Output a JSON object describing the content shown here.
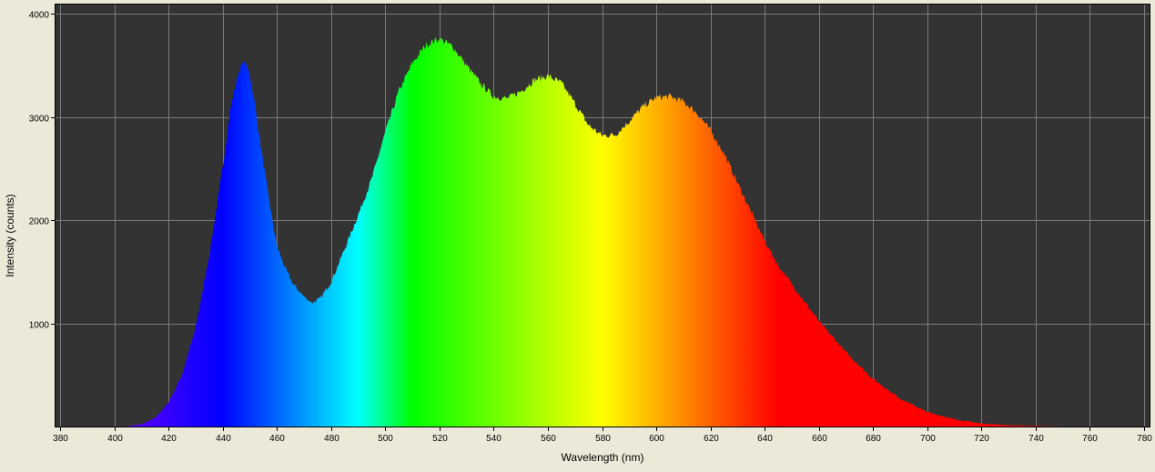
{
  "chart_data": {
    "type": "area",
    "title": "",
    "xlabel": "Wavelength (nm)",
    "ylabel": "Intensity (counts)",
    "xlim": [
      378,
      782
    ],
    "ylim": [
      0,
      4100
    ],
    "x_ticks": [
      380,
      400,
      420,
      440,
      460,
      480,
      500,
      520,
      540,
      560,
      580,
      600,
      620,
      640,
      660,
      680,
      700,
      720,
      740,
      760,
      780
    ],
    "y_ticks": [
      1000,
      2000,
      3000,
      4000
    ],
    "grid": true,
    "legend": "none",
    "fill": "visible-spectrum rainbow under curve",
    "plot_background": "#333333",
    "grid_color": "#7a7a7a",
    "spectrum_colors": [
      {
        "nm": 400,
        "color": "#6a00ff"
      },
      {
        "nm": 440,
        "color": "#0000ff"
      },
      {
        "nm": 490,
        "color": "#00ffff"
      },
      {
        "nm": 510,
        "color": "#00ff00"
      },
      {
        "nm": 580,
        "color": "#ffff00"
      },
      {
        "nm": 645,
        "color": "#ff0000"
      },
      {
        "nm": 780,
        "color": "#ff0000"
      }
    ],
    "series": [
      {
        "x": [
          405,
          410,
          415,
          420,
          425,
          430,
          435,
          440,
          443,
          446,
          448,
          450,
          452,
          455,
          458,
          460,
          463,
          466,
          470,
          473,
          476,
          480,
          485,
          490,
          495,
          500,
          505,
          510,
          515,
          520,
          525,
          530,
          535,
          540,
          545,
          550,
          555,
          560,
          565,
          570,
          575,
          580,
          585,
          590,
          595,
          600,
          605,
          610,
          615,
          620,
          625,
          630,
          635,
          640,
          645,
          650,
          655,
          660,
          670,
          680,
          690,
          700,
          710,
          720,
          730,
          740,
          750
        ],
        "y": [
          5,
          20,
          80,
          230,
          500,
          950,
          1650,
          2500,
          3100,
          3450,
          3530,
          3420,
          3100,
          2550,
          2050,
          1750,
          1540,
          1380,
          1260,
          1200,
          1240,
          1400,
          1720,
          2050,
          2400,
          2850,
          3250,
          3520,
          3700,
          3760,
          3680,
          3500,
          3330,
          3200,
          3180,
          3250,
          3360,
          3400,
          3330,
          3130,
          2920,
          2820,
          2830,
          2960,
          3100,
          3190,
          3200,
          3150,
          3040,
          2870,
          2650,
          2360,
          2080,
          1800,
          1560,
          1380,
          1200,
          1020,
          720,
          460,
          270,
          140,
          70,
          30,
          12,
          5,
          0
        ]
      }
    ]
  }
}
